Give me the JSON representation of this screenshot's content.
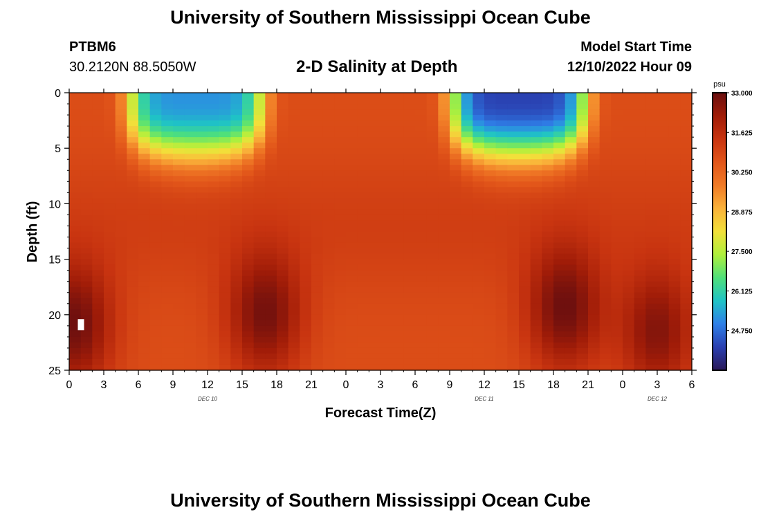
{
  "header": {
    "title": "University of Southern Mississippi Ocean Cube",
    "station_id": "PTBM6",
    "coordinates": "30.2120N  88.5050W",
    "subtitle": "2-D Salinity at Depth",
    "model_start_label": "Model Start Time",
    "model_start_time": "12/10/2022 Hour 09"
  },
  "footer": {
    "title": "University of Southern Mississippi Ocean Cube"
  },
  "chart_data": {
    "type": "heatmap",
    "title": "2-D Salinity at Depth",
    "xlabel": "Forecast Time(Z)",
    "ylabel": "Depth (ft)",
    "x_tick_labels": [
      "0",
      "3",
      "6",
      "9",
      "12",
      "15",
      "18",
      "21",
      "0",
      "3",
      "6",
      "9",
      "12",
      "15",
      "18",
      "21",
      "0",
      "3",
      "6"
    ],
    "date_labels": [
      {
        "label": "DEC 10",
        "hour_index": 12
      },
      {
        "label": "DEC 11",
        "hour_index": 36
      },
      {
        "label": "DEC 12",
        "hour_index": 51
      }
    ],
    "xlim_hours": [
      0,
      54
    ],
    "y_ticks": [
      0,
      5,
      10,
      15,
      20,
      25
    ],
    "ylim": [
      25,
      0
    ],
    "y_inverted": true,
    "colorbar": {
      "unit": "psu",
      "tick_values": [
        "33.000",
        "31.625",
        "30.250",
        "28.875",
        "27.500",
        "26.125",
        "24.750"
      ],
      "range": [
        23.375,
        33.0
      ],
      "stops": [
        "#2a1858",
        "#2a3fb0",
        "#2f80e8",
        "#1fc3c6",
        "#4fe07a",
        "#b0f03c",
        "#f2e03a",
        "#fab23a",
        "#f07a26",
        "#e2561a",
        "#c83410",
        "#a01c08",
        "#6a0f0f"
      ]
    },
    "salinity_model": {
      "base": 30.8,
      "surface_fresh_events": [
        {
          "center_hour": 11,
          "half_width_hours": 6,
          "min_salinity": 25.2,
          "depth_extent_ft": 6
        },
        {
          "center_hour": 39,
          "half_width_hours": 6,
          "min_salinity": 24.2,
          "depth_extent_ft": 6
        }
      ],
      "deep_saline_cores": [
        {
          "center_hour": 0.5,
          "center_depth_ft": 21,
          "max_salinity": 32.9
        },
        {
          "center_hour": 17,
          "center_depth_ft": 20,
          "max_salinity": 32.8
        },
        {
          "center_hour": 43,
          "center_depth_ft": 19.5,
          "max_salinity": 32.9
        },
        {
          "center_hour": 51,
          "center_depth_ft": 21.5,
          "max_salinity": 32.6
        }
      ]
    }
  }
}
